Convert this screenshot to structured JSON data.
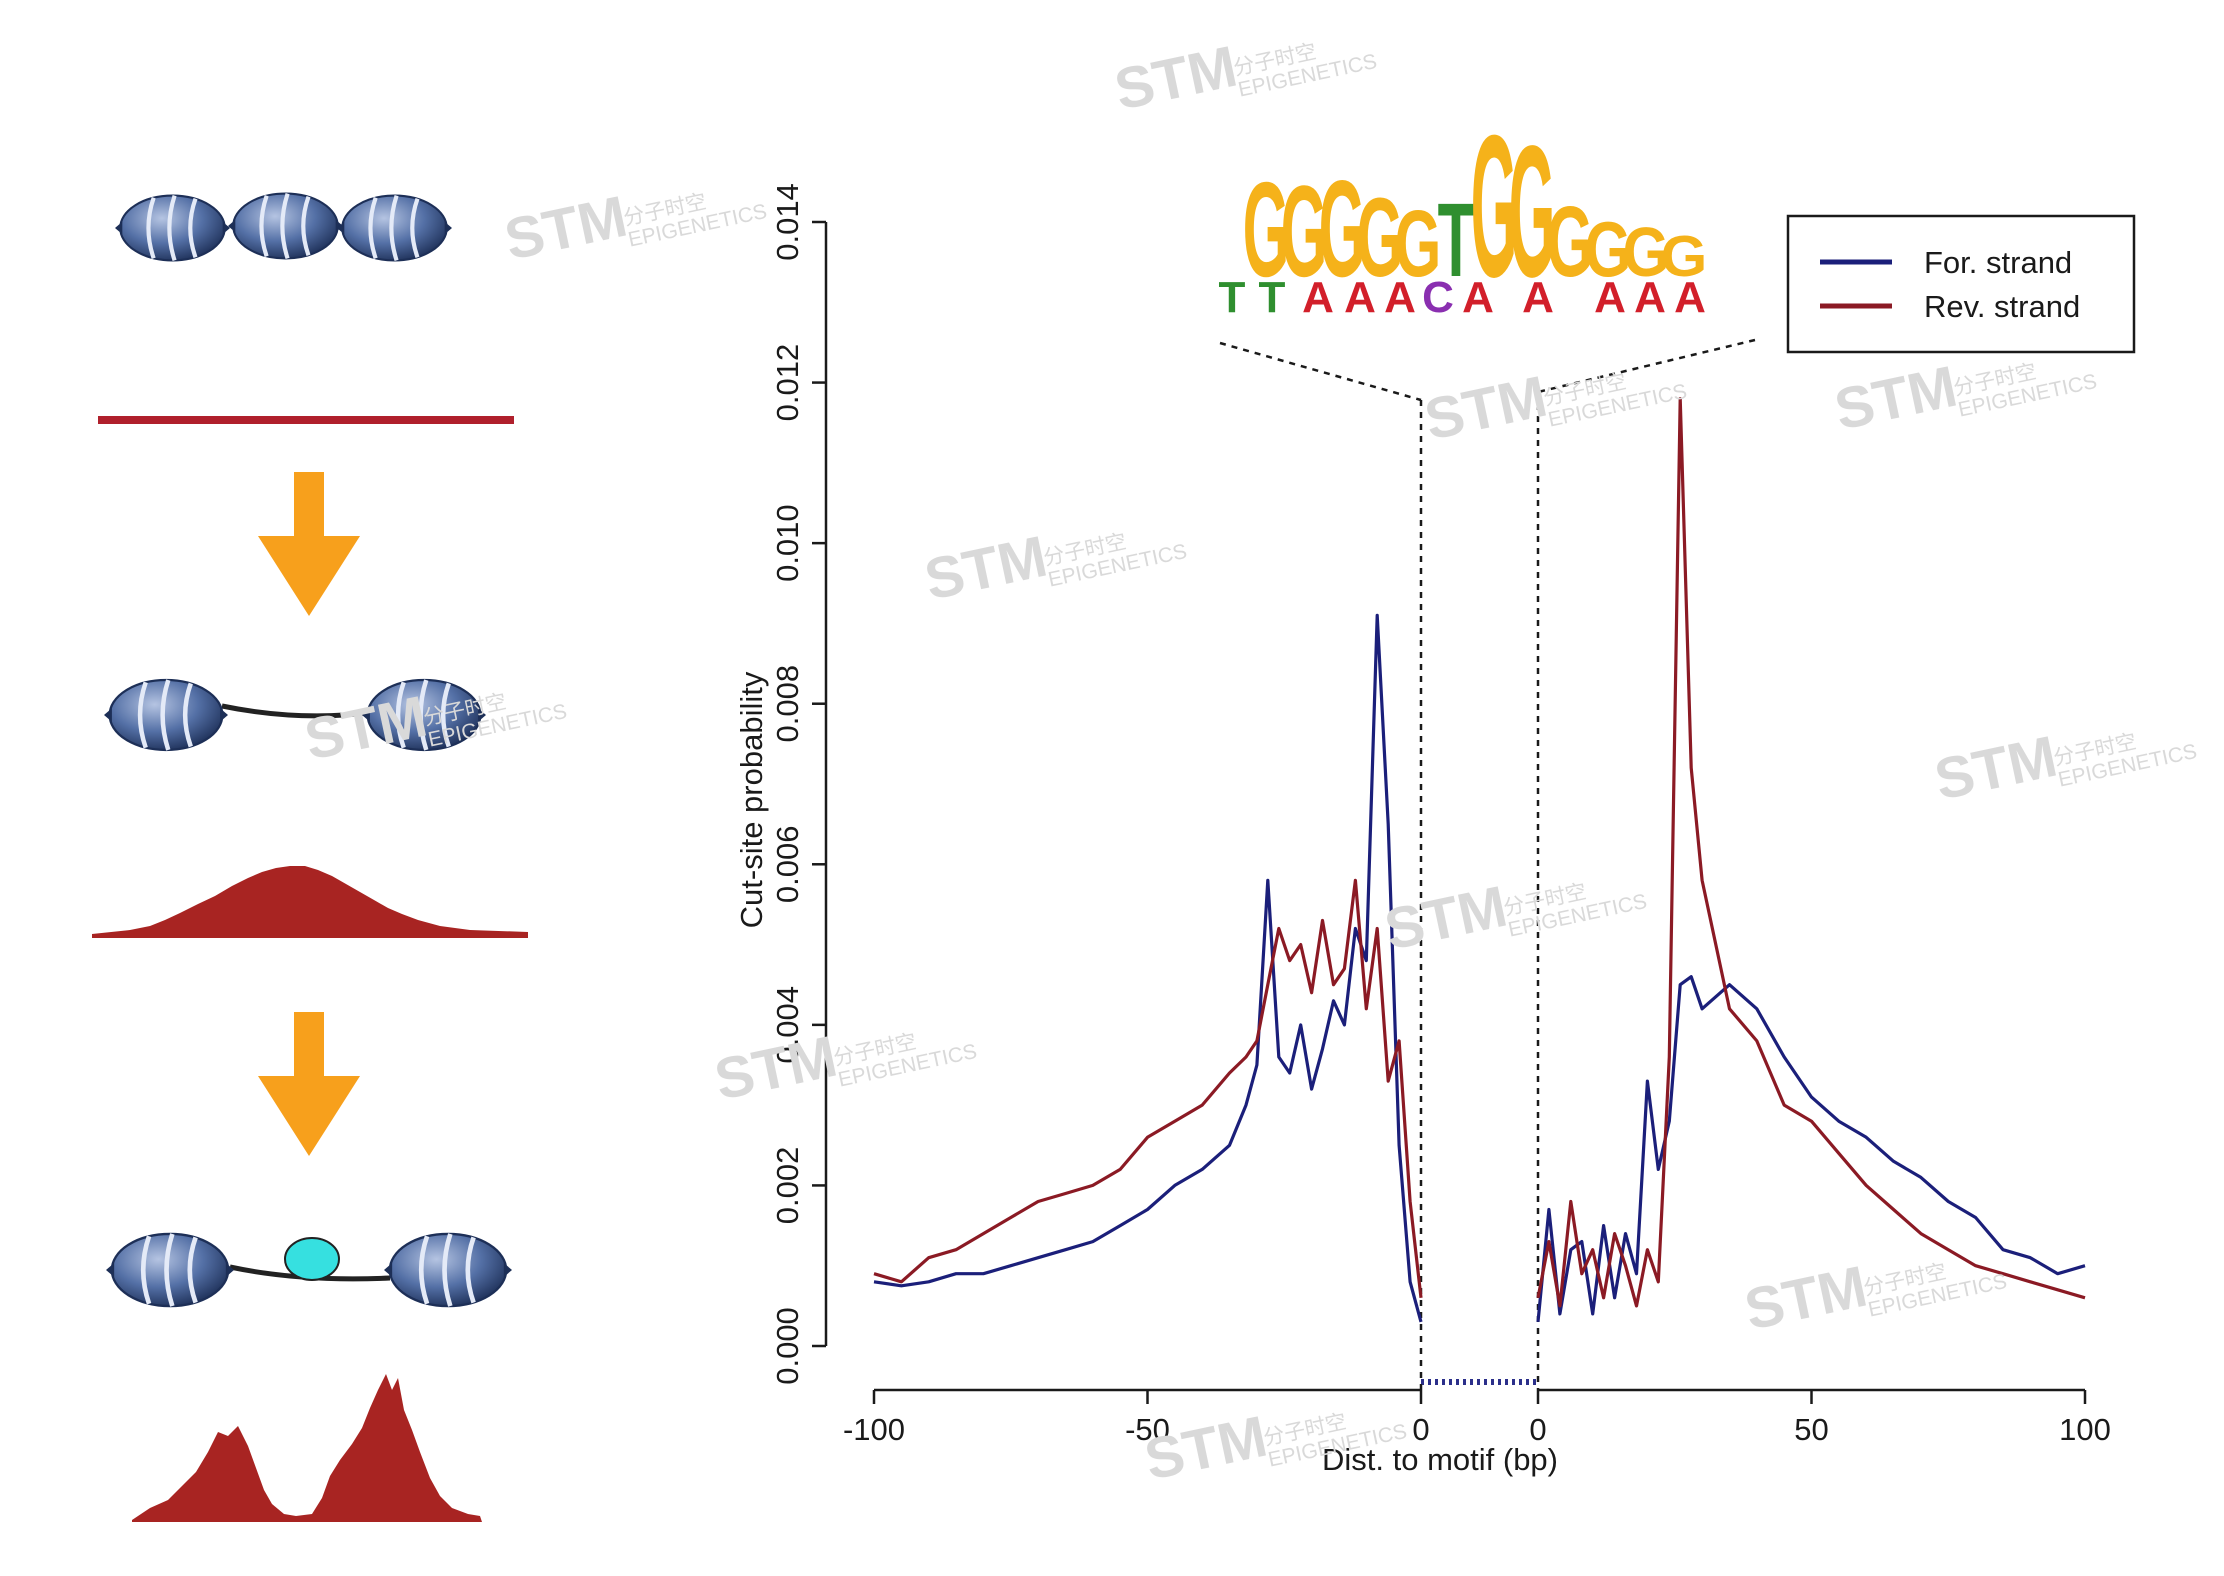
{
  "colors": {
    "forward": "#1b1f7a",
    "reverse": "#8b1a24",
    "arrow": "#f7a01c",
    "nucleosome": "#5470a6",
    "factor": "#36e0e0",
    "dna": "#b0202c",
    "profile": "#a82422"
  },
  "watermark": {
    "main": "STM",
    "sub": "EPIGENETICS",
    "cn": "分子时空"
  },
  "motif": {
    "letters_top": [
      "G",
      "G",
      "G",
      "G",
      "G",
      "T",
      "G",
      "G",
      "G",
      "G",
      "G"
    ],
    "letters_bottom": [
      "T",
      "T",
      "A",
      "A",
      "A",
      "C",
      "A",
      "A",
      "A",
      "A",
      "A"
    ]
  },
  "chart_data": {
    "type": "line",
    "xlabel": "Dist. to motif (bp)",
    "ylabel": "Cut-site probability",
    "xlim": [
      -100,
      100
    ],
    "ylim": [
      0,
      0.014
    ],
    "x_ticks": [
      "-100",
      "-50",
      "0",
      "0",
      "50",
      "100"
    ],
    "y_ticks": [
      "0.000",
      "0.002",
      "0.004",
      "0.006",
      "0.008",
      "0.010",
      "0.012",
      "0.014"
    ],
    "motif_region": [
      0,
      0
    ],
    "legend": {
      "position": "top-right",
      "entries": [
        "For. strand",
        "Rev. strand"
      ]
    },
    "series": [
      {
        "name": "For. strand",
        "x": [
          -100,
          -95,
          -90,
          -85,
          -80,
          -75,
          -70,
          -65,
          -60,
          -55,
          -50,
          -45,
          -40,
          -35,
          -32,
          -30,
          -28,
          -26,
          -24,
          -22,
          -20,
          -18,
          -16,
          -14,
          -12,
          -10,
          -8,
          -6,
          -4,
          -2,
          0,
          2,
          4,
          6,
          8,
          10,
          12,
          14,
          16,
          18,
          20,
          22,
          24,
          26,
          28,
          30,
          35,
          40,
          45,
          50,
          55,
          60,
          65,
          70,
          75,
          80,
          85,
          90,
          95,
          100
        ],
        "y": [
          0.0008,
          0.00075,
          0.0008,
          0.0009,
          0.0009,
          0.001,
          0.0011,
          0.0012,
          0.0013,
          0.0015,
          0.0017,
          0.002,
          0.0022,
          0.0025,
          0.003,
          0.0035,
          0.0058,
          0.0036,
          0.0034,
          0.004,
          0.0032,
          0.0037,
          0.0043,
          0.004,
          0.0052,
          0.0048,
          0.0091,
          0.0065,
          0.0025,
          0.0008,
          0.0003,
          0.0017,
          0.0004,
          0.0012,
          0.0013,
          0.0004,
          0.0015,
          0.0006,
          0.0014,
          0.0009,
          0.0033,
          0.0022,
          0.0028,
          0.0045,
          0.0046,
          0.0042,
          0.0045,
          0.0042,
          0.0036,
          0.0031,
          0.0028,
          0.0026,
          0.0023,
          0.0021,
          0.0018,
          0.0016,
          0.0012,
          0.0011,
          0.0009,
          0.001
        ]
      },
      {
        "name": "Rev. strand",
        "x": [
          -100,
          -95,
          -90,
          -85,
          -80,
          -75,
          -70,
          -65,
          -60,
          -55,
          -50,
          -45,
          -40,
          -35,
          -32,
          -30,
          -28,
          -26,
          -24,
          -22,
          -20,
          -18,
          -16,
          -14,
          -12,
          -10,
          -8,
          -6,
          -4,
          -2,
          0,
          2,
          4,
          6,
          8,
          10,
          12,
          14,
          16,
          18,
          20,
          22,
          24,
          26,
          28,
          30,
          35,
          40,
          45,
          50,
          55,
          60,
          65,
          70,
          75,
          80,
          85,
          90,
          95,
          100
        ],
        "y": [
          0.0009,
          0.0008,
          0.0011,
          0.0012,
          0.0014,
          0.0016,
          0.0018,
          0.0019,
          0.002,
          0.0022,
          0.0026,
          0.0028,
          0.003,
          0.0034,
          0.0036,
          0.0038,
          0.0045,
          0.0052,
          0.0048,
          0.005,
          0.0044,
          0.0053,
          0.0045,
          0.0047,
          0.0058,
          0.0042,
          0.0052,
          0.0033,
          0.0038,
          0.0018,
          0.0006,
          0.0013,
          0.0005,
          0.0018,
          0.0009,
          0.0012,
          0.0006,
          0.0014,
          0.001,
          0.0005,
          0.0012,
          0.0008,
          0.0036,
          0.0118,
          0.0072,
          0.0058,
          0.0042,
          0.0038,
          0.003,
          0.0028,
          0.0024,
          0.002,
          0.0017,
          0.0014,
          0.0012,
          0.001,
          0.0009,
          0.0008,
          0.0007,
          0.0006
        ]
      }
    ]
  }
}
